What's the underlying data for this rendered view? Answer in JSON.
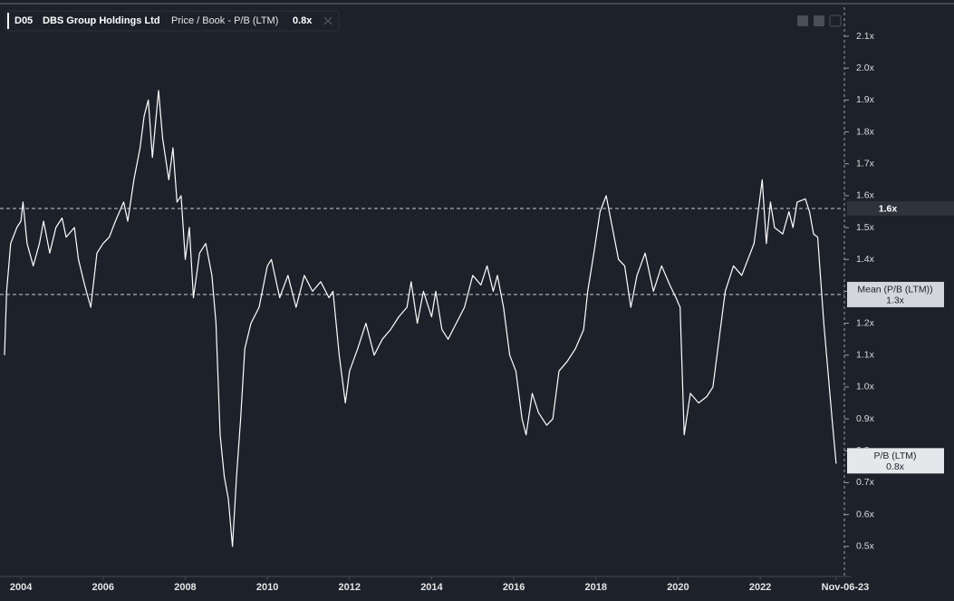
{
  "chart_data": {
    "type": "line",
    "header": {
      "ticker": "D05",
      "company": "DBS Group Holdings Ltd",
      "metric": "Price / Book - P/B (LTM)",
      "current": "0.8x"
    },
    "xlim": [
      2003.6,
      2024.05
    ],
    "ylim": [
      0.4,
      2.2
    ],
    "xticks": [
      2004,
      2006,
      2008,
      2010,
      2012,
      2014,
      2016,
      2018,
      2020,
      2022,
      {
        "value": 2023.85,
        "label": "Nov-06-23"
      }
    ],
    "yticks": [
      {
        "value": 0.5,
        "label": "0.5x"
      },
      {
        "value": 0.6,
        "label": "0.6x"
      },
      {
        "value": 0.7,
        "label": "0.7x"
      },
      {
        "value": 0.8,
        "label": "0.8x"
      },
      {
        "value": 0.9,
        "label": "0.9x"
      },
      {
        "value": 1.0,
        "label": "1.0x"
      },
      {
        "value": 1.1,
        "label": "1.1x"
      },
      {
        "value": 1.2,
        "label": "1.2x"
      },
      {
        "value": 1.3,
        "label": "1.3x"
      },
      {
        "value": 1.4,
        "label": "1.4x"
      },
      {
        "value": 1.5,
        "label": "1.5x"
      },
      {
        "value": 1.6,
        "label": "1.6x"
      },
      {
        "value": 1.7,
        "label": "1.7x"
      },
      {
        "value": 1.8,
        "label": "1.8x"
      },
      {
        "value": 1.9,
        "label": "1.9x"
      },
      {
        "value": 2.0,
        "label": "2.0x"
      },
      {
        "value": 2.1,
        "label": "2.1x"
      }
    ],
    "reference_lines": [
      {
        "value": 1.56,
        "label": "1.6x"
      },
      {
        "name": "Mean (P/B (LTM))",
        "value": 1.29,
        "label": "1.3x"
      }
    ],
    "series": [
      {
        "name": "P/B (LTM)",
        "color": "#ffffff",
        "last_value_label": "0.8x",
        "x": [
          2003.6,
          2003.65,
          2003.75,
          2003.9,
          2004.0,
          2004.05,
          2004.15,
          2004.3,
          2004.45,
          2004.55,
          2004.7,
          2004.85,
          2005.0,
          2005.1,
          2005.3,
          2005.4,
          2005.55,
          2005.7,
          2005.85,
          2006.0,
          2006.15,
          2006.3,
          2006.5,
          2006.6,
          2006.75,
          2006.9,
          2007.0,
          2007.1,
          2007.2,
          2007.35,
          2007.45,
          2007.6,
          2007.7,
          2007.8,
          2007.9,
          2008.0,
          2008.1,
          2008.2,
          2008.35,
          2008.5,
          2008.65,
          2008.75,
          2008.85,
          2008.95,
          2009.05,
          2009.15,
          2009.25,
          2009.35,
          2009.45,
          2009.6,
          2009.8,
          2010.0,
          2010.1,
          2010.3,
          2010.5,
          2010.7,
          2010.9,
          2011.1,
          2011.3,
          2011.5,
          2011.6,
          2011.75,
          2011.9,
          2012.0,
          2012.2,
          2012.4,
          2012.6,
          2012.8,
          2013.0,
          2013.2,
          2013.4,
          2013.5,
          2013.65,
          2013.8,
          2014.0,
          2014.1,
          2014.25,
          2014.4,
          2014.6,
          2014.8,
          2015.0,
          2015.2,
          2015.35,
          2015.5,
          2015.6,
          2015.75,
          2015.9,
          2016.05,
          2016.2,
          2016.3,
          2016.45,
          2016.6,
          2016.8,
          2016.95,
          2017.1,
          2017.3,
          2017.5,
          2017.7,
          2017.8,
          2017.95,
          2018.1,
          2018.25,
          2018.4,
          2018.55,
          2018.7,
          2018.85,
          2019.0,
          2019.2,
          2019.4,
          2019.6,
          2019.8,
          2019.95,
          2020.05,
          2020.15,
          2020.3,
          2020.5,
          2020.7,
          2020.85,
          2021.0,
          2021.15,
          2021.35,
          2021.55,
          2021.7,
          2021.85,
          2022.0,
          2022.05,
          2022.15,
          2022.25,
          2022.35,
          2022.55,
          2022.7,
          2022.8,
          2022.9,
          2023.1,
          2023.2,
          2023.3,
          2023.4,
          2023.55,
          2023.75,
          2023.85
        ],
        "values": [
          1.1,
          1.3,
          1.45,
          1.5,
          1.52,
          1.58,
          1.45,
          1.38,
          1.45,
          1.52,
          1.42,
          1.5,
          1.53,
          1.47,
          1.5,
          1.4,
          1.32,
          1.25,
          1.42,
          1.45,
          1.47,
          1.52,
          1.58,
          1.52,
          1.65,
          1.75,
          1.85,
          1.9,
          1.72,
          1.93,
          1.78,
          1.65,
          1.75,
          1.58,
          1.6,
          1.4,
          1.5,
          1.28,
          1.42,
          1.45,
          1.35,
          1.2,
          0.85,
          0.72,
          0.65,
          0.5,
          0.72,
          0.9,
          1.12,
          1.2,
          1.25,
          1.38,
          1.4,
          1.28,
          1.35,
          1.25,
          1.35,
          1.3,
          1.33,
          1.28,
          1.3,
          1.1,
          0.95,
          1.05,
          1.12,
          1.2,
          1.1,
          1.15,
          1.18,
          1.22,
          1.25,
          1.33,
          1.2,
          1.3,
          1.22,
          1.3,
          1.18,
          1.15,
          1.2,
          1.25,
          1.35,
          1.32,
          1.38,
          1.3,
          1.35,
          1.25,
          1.1,
          1.05,
          0.9,
          0.85,
          0.98,
          0.92,
          0.88,
          0.9,
          1.05,
          1.08,
          1.12,
          1.18,
          1.3,
          1.42,
          1.55,
          1.6,
          1.5,
          1.4,
          1.38,
          1.25,
          1.35,
          1.42,
          1.3,
          1.38,
          1.32,
          1.28,
          1.25,
          0.85,
          0.98,
          0.95,
          0.97,
          1.0,
          1.15,
          1.3,
          1.38,
          1.35,
          1.4,
          1.45,
          1.6,
          1.65,
          1.45,
          1.58,
          1.5,
          1.48,
          1.55,
          1.5,
          1.58,
          1.59,
          1.55,
          1.48,
          1.47,
          1.2,
          0.9,
          0.76
        ]
      }
    ]
  }
}
